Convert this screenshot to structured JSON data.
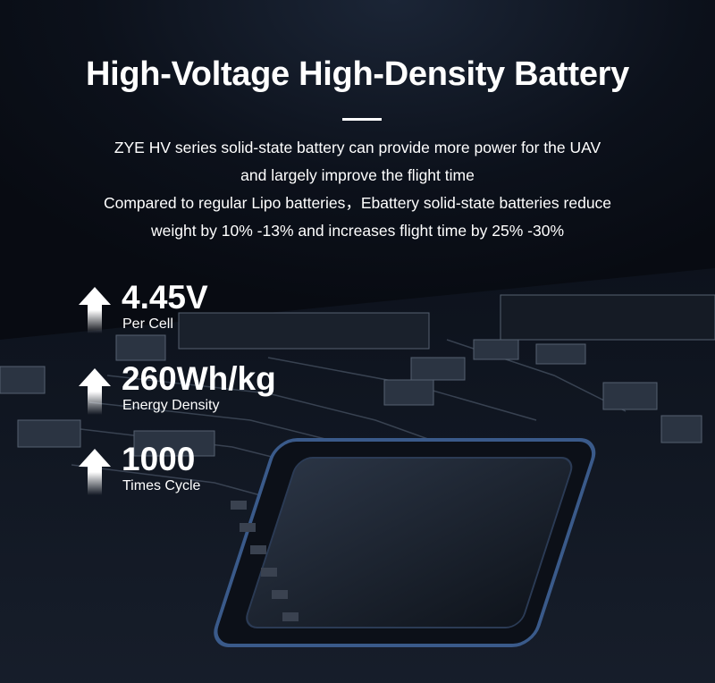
{
  "title": "High-Voltage High-Density Battery",
  "description": [
    "ZYE HV series solid-state battery can provide more power for the UAV",
    "and largely improve the flight time",
    "Compared to regular Lipo batteries，Ebattery solid-state batteries reduce",
    "weight by 10% -13% and increases flight time by 25% -30%"
  ],
  "stats": [
    {
      "value": "4.45V",
      "label": "Per Cell",
      "icon": "up-arrow-icon"
    },
    {
      "value": "260Wh/kg",
      "label": "Energy Density",
      "icon": "up-arrow-icon"
    },
    {
      "value": "1000",
      "label": "Times Cycle",
      "icon": "up-arrow-icon"
    }
  ],
  "colors": {
    "background": "#0a0e16",
    "chip_edge": "#3a5a8a",
    "text": "#ffffff"
  }
}
